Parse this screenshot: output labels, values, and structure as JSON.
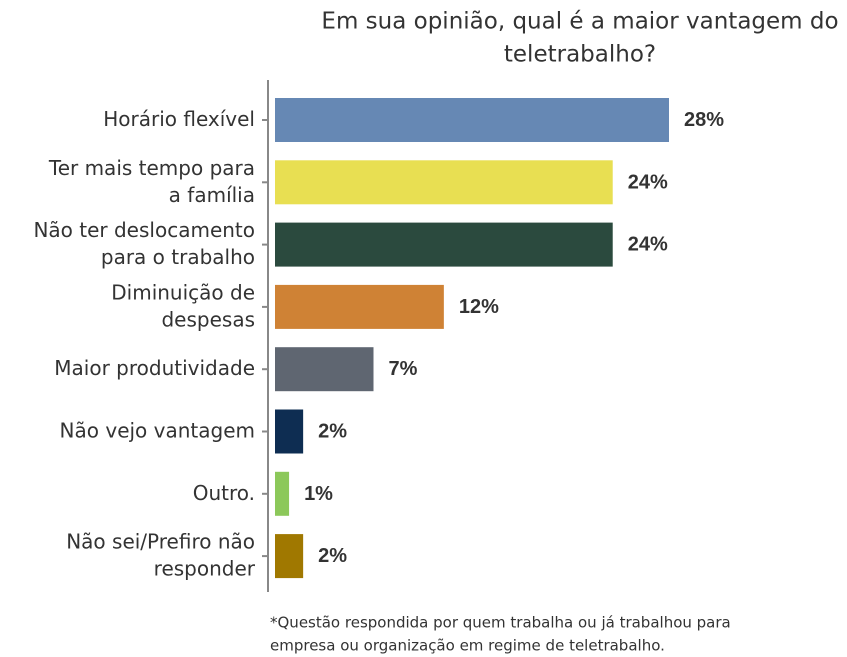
{
  "chart_data": {
    "type": "bar",
    "orientation": "horizontal",
    "title": "Em sua opinião, qual é a maior vantagem do\nteletrabalho?",
    "categories": [
      "Horário flexível",
      "Ter mais tempo para\na família",
      "Não ter deslocamento\npara o trabalho",
      "Diminuição de\ndespesas",
      "Maior produtividade",
      "Não vejo vantagem",
      "Outro.",
      "Não sei/Prefiro não\nresponder"
    ],
    "values": [
      28,
      24,
      24,
      12,
      7,
      2,
      1,
      2
    ],
    "value_labels": [
      "28%",
      "24%",
      "24%",
      "12%",
      "7%",
      "2%",
      "1%",
      "2%"
    ],
    "colors": [
      "#6688b4",
      "#e8df52",
      "#2b4a3e",
      "#cf8235",
      "#5f6671",
      "#0e2d52",
      "#8cc85a",
      "#a07800"
    ],
    "footnote": "*Questão respondida por quem trabalha ou já trabalhou para\nempresa ou organização em regime de teletrabalho."
  }
}
